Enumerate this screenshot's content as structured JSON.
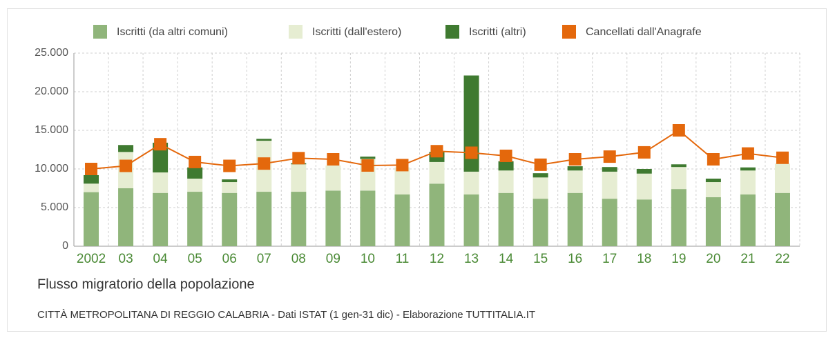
{
  "chart_data": {
    "type": "bar",
    "title": "Flusso migratorio della popolazione",
    "subtitle": "CITTÀ METROPOLITANA DI REGGIO CALABRIA - Dati ISTAT (1 gen-31 dic) - Elaborazione TUTTITALIA.IT",
    "categories": [
      "2002",
      "03",
      "04",
      "05",
      "06",
      "07",
      "08",
      "09",
      "10",
      "11",
      "12",
      "13",
      "14",
      "15",
      "16",
      "17",
      "18",
      "19",
      "20",
      "21",
      "22"
    ],
    "series": [
      {
        "name": "Iscritti (da altri comuni)",
        "color": "#90b57b",
        "values": [
          7000,
          7500,
          6900,
          7050,
          6900,
          7050,
          7050,
          7200,
          7200,
          6700,
          8100,
          6700,
          6900,
          6150,
          6900,
          6150,
          6050,
          7400,
          6350,
          6700,
          6900
        ]
      },
      {
        "name": "Iscritti (dall'estero)",
        "color": "#e6edd2",
        "values": [
          1100,
          4700,
          2650,
          1700,
          1400,
          6600,
          3550,
          3250,
          4100,
          3500,
          2800,
          2950,
          2900,
          2750,
          2900,
          3500,
          3350,
          2850,
          1950,
          3100,
          3800
        ]
      },
      {
        "name": "Iscritti (altri)",
        "color": "#3f7a30",
        "values": [
          1100,
          900,
          3850,
          1450,
          350,
          250,
          150,
          0,
          300,
          0,
          1300,
          12450,
          1200,
          550,
          550,
          600,
          600,
          350,
          450,
          400,
          0
        ]
      },
      {
        "name": "Cancellati dall'Anagrafe",
        "color": "#e4680c",
        "type": "line",
        "values": [
          10000,
          10400,
          13200,
          10900,
          10400,
          10700,
          11400,
          11250,
          10450,
          10500,
          12300,
          12100,
          11700,
          10550,
          11250,
          11600,
          12150,
          15000,
          11250,
          12000,
          11450
        ]
      }
    ],
    "ylim": [
      0,
      25000
    ],
    "yticks": [
      0,
      {
        "value": 5000,
        "label": "5.000"
      },
      {
        "value": 10000,
        "label": "10.000"
      },
      {
        "value": 15000,
        "label": "15.000"
      },
      {
        "value": 20000,
        "label": "20.000"
      },
      {
        "value": 25000,
        "label": "25.000"
      }
    ],
    "grid": true,
    "stacked": true
  }
}
